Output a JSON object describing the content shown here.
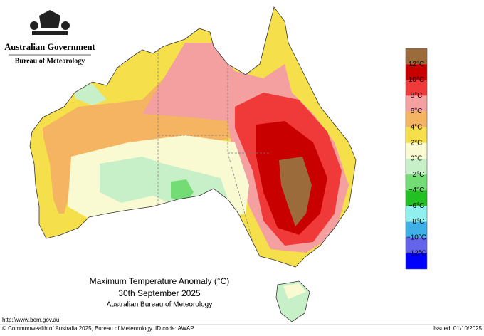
{
  "header": {
    "government": "Australian Government",
    "agency": "Bureau of Meteorology"
  },
  "map": {
    "title": "Maximum Temperature Anomaly (°C)",
    "date": "30th September 2025",
    "source": "Australian Bureau of Meteorology"
  },
  "legend": {
    "colors": [
      "#9b6b3c",
      "#c80000",
      "#f03a3a",
      "#f4a0a0",
      "#f5b462",
      "#f5e04c",
      "#fafad2",
      "#c8f0c8",
      "#74dc74",
      "#22c022",
      "#90f0f0",
      "#40b0e8",
      "#6464ea",
      "#0000ff"
    ],
    "labels": [
      "12°C",
      "10°C",
      "8°C",
      "6°C",
      "4°C",
      "2°C",
      "0°C",
      "−2°C",
      "−4°C",
      "−6°C",
      "−8°C",
      "−10°C",
      "−12°C"
    ]
  },
  "footer": {
    "url": "http://www.bom.gov.au",
    "copyright": "© Commonwealth of Australia 2025, Bureau of Meteorology",
    "id_code": "ID code: AWAP",
    "issued": "Issued: 01/10/2025"
  }
}
